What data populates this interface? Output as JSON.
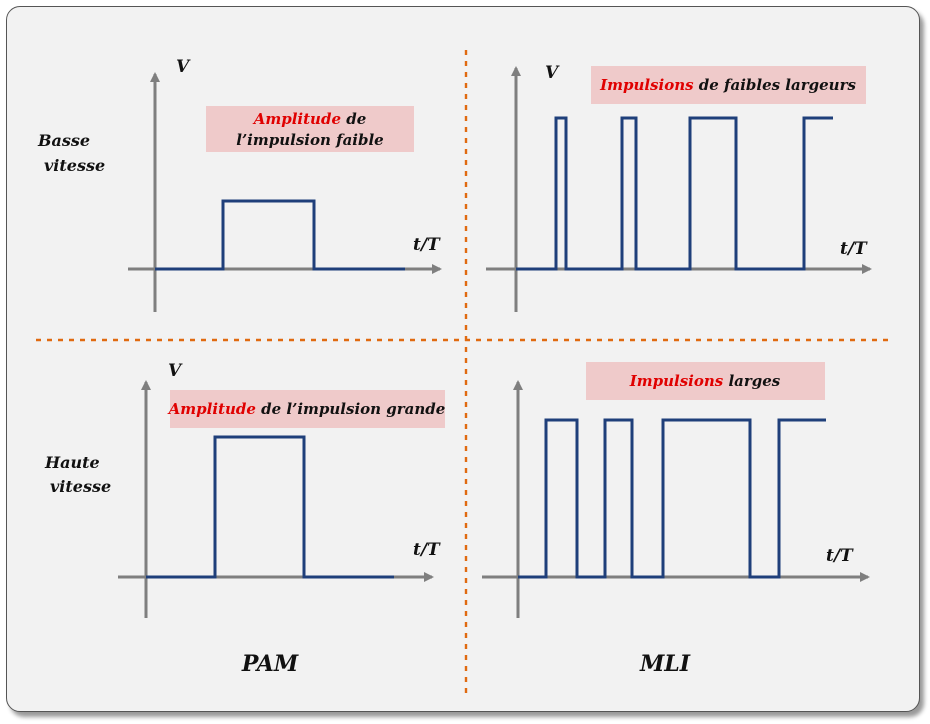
{
  "rows": {
    "low_speed": [
      "Basse",
      "vitesse"
    ],
    "high_speed": [
      "Haute",
      "vitesse"
    ]
  },
  "axes": {
    "y_label": "V",
    "x_label": "t/T"
  },
  "panels": {
    "pam_low": {
      "hl": "Amplitude",
      "rest1": " de",
      "line2": "l’impulsion faible"
    },
    "mli_low": {
      "hl": "Impulsions",
      "rest": " de faibles largeurs"
    },
    "pam_high": {
      "hl": "Amplitude",
      "rest": " de l’impulsion grande"
    },
    "mli_high": {
      "hl": "Impulsions",
      "rest": " larges"
    }
  },
  "columns": {
    "pam": "PAM",
    "mli": "MLI"
  },
  "colors": {
    "signal": "#1f3f7a",
    "highlight": "#e00000",
    "label_bg": "#efcaca",
    "divider": "#e06a10",
    "axis": "#7f7f7f"
  }
}
